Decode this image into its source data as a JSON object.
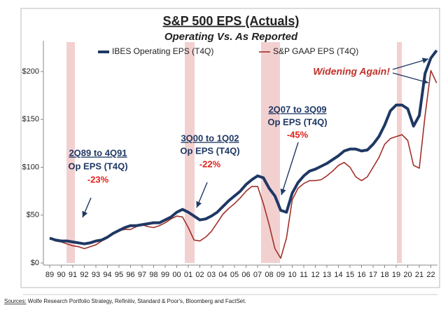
{
  "chart_data": {
    "type": "line",
    "title": "S&P 500 EPS (Actuals)",
    "subtitle": "Operating Vs. As Reported",
    "categories": [
      "89",
      null,
      "90",
      null,
      "91",
      null,
      "92",
      null,
      "93",
      null,
      "94",
      null,
      "95",
      null,
      "96",
      null,
      "97",
      null,
      "98",
      null,
      "99",
      null,
      "00",
      null,
      "01",
      null,
      "02",
      null,
      "03",
      null,
      "04",
      null,
      "05",
      null,
      "06",
      null,
      "07",
      null,
      "08",
      null,
      "09",
      null,
      "10",
      null,
      "11",
      null,
      "12",
      null,
      "13",
      null,
      "14",
      null,
      "15",
      null,
      "16",
      null,
      "17",
      null,
      "18",
      null,
      "19",
      null,
      "20",
      null,
      "21",
      null,
      "22",
      null
    ],
    "series": [
      {
        "name": "IBES Operating EPS (T4Q)",
        "color": "#1f3864",
        "width": 4,
        "values": [
          26,
          24,
          23,
          23,
          22,
          21,
          20,
          21,
          23,
          24,
          27,
          31,
          34,
          37,
          39,
          39,
          40,
          41,
          42,
          42,
          45,
          48,
          53,
          56,
          53,
          49,
          45,
          46,
          49,
          53,
          59,
          65,
          70,
          75,
          82,
          87,
          91,
          89,
          78,
          70,
          55,
          53,
          73,
          84,
          91,
          96,
          98,
          101,
          104,
          108,
          112,
          117,
          119,
          119,
          117,
          118,
          124,
          132,
          144,
          159,
          165,
          165,
          161,
          143,
          154,
          198,
          214,
          222
        ]
      },
      {
        "name": "S&P GAAP EPS (T4Q)",
        "color": "#a0302a",
        "width": 1.6,
        "values": [
          26,
          23,
          22,
          20,
          18,
          17,
          15,
          17,
          19,
          23,
          26,
          31,
          34,
          35,
          35,
          38,
          40,
          38,
          37,
          39,
          42,
          46,
          49,
          48,
          37,
          24,
          23,
          27,
          33,
          42,
          51,
          57,
          62,
          68,
          75,
          80,
          80,
          62,
          40,
          15,
          5,
          26,
          66,
          78,
          83,
          86,
          86,
          87,
          91,
          96,
          102,
          105,
          100,
          90,
          86,
          90,
          100,
          110,
          124,
          130,
          132,
          134,
          128,
          102,
          99,
          154,
          201,
          188
        ]
      }
    ],
    "ylim": [
      0,
      230
    ],
    "yticks": [
      {
        "value": 0,
        "label": "$0"
      },
      {
        "value": 50,
        "label": "$50"
      },
      {
        "value": 100,
        "label": "$100"
      },
      {
        "value": 150,
        "label": "$150"
      },
      {
        "value": 200,
        "label": "$200"
      }
    ],
    "legend": "top",
    "annotations": [
      {
        "period": "2Q89 to 4Q91",
        "metric": "Op EPS (T4Q)",
        "change": "-23%"
      },
      {
        "period": "3Q00 to 1Q02",
        "metric": "Op EPS (T4Q)",
        "change": "-22%"
      },
      {
        "period": "2Q07 to 3Q09",
        "metric": "Op EPS (T4Q)",
        "change": "-45%"
      },
      {
        "text": "Widening Again!"
      }
    ]
  },
  "footer": {
    "label": "Sources:",
    "text": " Wolfe Research Portfolio Strategy, Refinitiv, Standard & Poor's, Bloomberg and FactSet."
  }
}
